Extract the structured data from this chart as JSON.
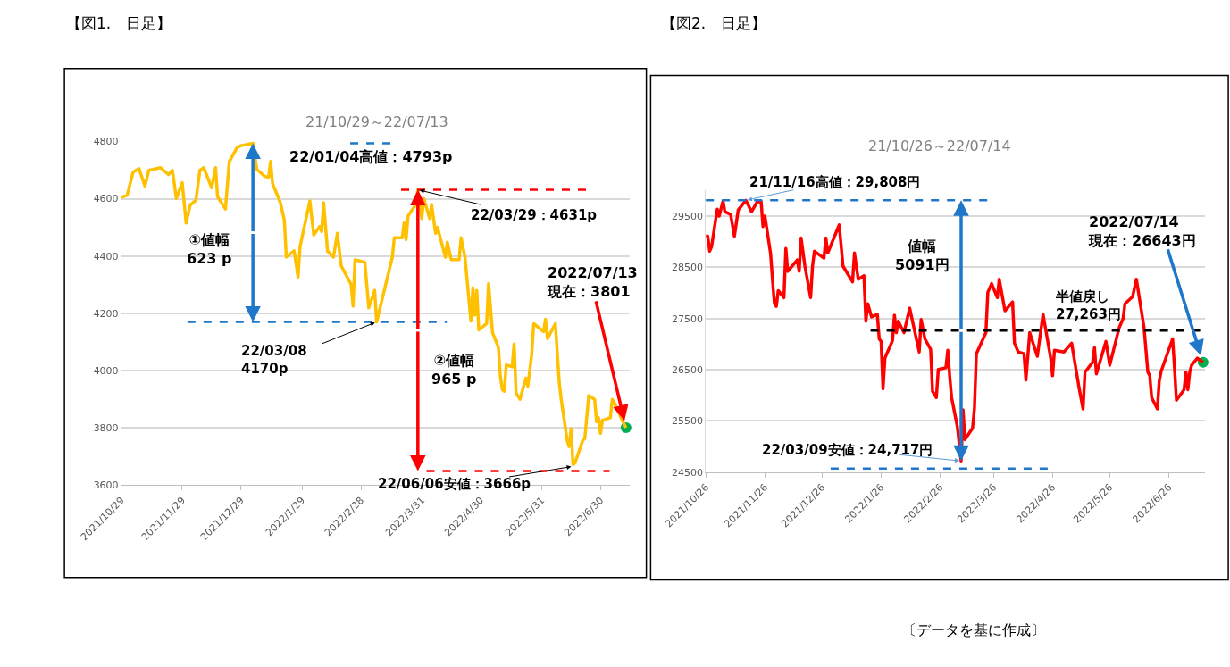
{
  "chart_data": [
    {
      "type": "line",
      "title": "【図1.　日足】",
      "subtitle": "21/10/29～22/07/13",
      "xlim": [
        "2021-10-29",
        "2022-07-15"
      ],
      "xticks": [
        {
          "value": "2021-10-29",
          "label": "2021/10/29"
        },
        {
          "value": "2021-11-29",
          "label": "2021/11/29"
        },
        {
          "value": "2021-12-29",
          "label": "2021/12/29"
        },
        {
          "value": "2022-01-29",
          "label": "2022/1/29"
        },
        {
          "value": "2022-02-28",
          "label": "2022/2/28"
        },
        {
          "value": "2022-03-31",
          "label": "2022/3/31"
        },
        {
          "value": "2022-04-30",
          "label": "2022/4/30"
        },
        {
          "value": "2022-05-31",
          "label": "2022/5/31"
        },
        {
          "value": "2022-06-30",
          "label": "2022/6/30"
        }
      ],
      "ylim": [
        3600,
        4800
      ],
      "yticks": [
        3600,
        3800,
        4000,
        4200,
        4400,
        4600,
        4800
      ],
      "grid": "y",
      "series": [
        {
          "type": "line",
          "color": "#ffc000",
          "x": [
            "2021-10-29",
            "2021-11-01",
            "2021-11-04",
            "2021-11-07",
            "2021-11-10",
            "2021-11-12",
            "2021-11-16",
            "2021-11-18",
            "2021-11-22",
            "2021-11-24",
            "2021-11-26",
            "2021-11-29",
            "2021-12-01",
            "2021-12-03",
            "2021-12-06",
            "2021-12-08",
            "2021-12-10",
            "2021-12-14",
            "2021-12-16",
            "2021-12-17",
            "2021-12-21",
            "2021-12-23",
            "2021-12-27",
            "2021-12-29",
            "2022-01-04",
            "2022-01-06",
            "2022-01-10",
            "2022-01-12",
            "2022-01-13",
            "2022-01-14",
            "2022-01-18",
            "2022-01-20",
            "2022-01-21",
            "2022-01-25",
            "2022-01-27",
            "2022-01-28",
            "2022-02-02",
            "2022-02-04",
            "2022-02-07",
            "2022-02-08",
            "2022-02-09",
            "2022-02-11",
            "2022-02-14",
            "2022-02-16",
            "2022-02-18",
            "2022-02-23",
            "2022-02-24",
            "2022-02-25",
            "2022-03-02",
            "2022-03-04",
            "2022-03-07",
            "2022-03-08",
            "2022-03-16",
            "2022-03-17",
            "2022-03-21",
            "2022-03-22",
            "2022-03-23",
            "2022-03-24",
            "2022-03-28",
            "2022-03-29",
            "2022-03-31",
            "2022-04-01",
            "2022-04-04",
            "2022-04-05",
            "2022-04-07",
            "2022-04-08",
            "2022-04-12",
            "2022-04-13",
            "2022-04-15",
            "2022-04-19",
            "2022-04-20",
            "2022-04-22",
            "2022-04-25",
            "2022-04-26",
            "2022-04-27",
            "2022-04-28",
            "2022-04-29",
            "2022-05-03",
            "2022-05-04",
            "2022-05-06",
            "2022-05-09",
            "2022-05-10",
            "2022-05-11",
            "2022-05-12",
            "2022-05-13",
            "2022-05-16",
            "2022-05-17",
            "2022-05-18",
            "2022-05-20",
            "2022-05-23",
            "2022-05-24",
            "2022-05-26",
            "2022-05-27",
            "2022-06-01",
            "2022-06-02",
            "2022-06-03",
            "2022-06-07",
            "2022-06-09",
            "2022-06-10",
            "2022-06-13",
            "2022-06-14",
            "2022-06-15",
            "2022-06-16",
            "2022-06-17",
            "2022-06-21",
            "2022-06-22",
            "2022-06-24",
            "2022-06-27",
            "2022-06-28",
            "2022-06-29",
            "2022-06-30",
            "2022-07-01",
            "2022-07-05",
            "2022-07-06",
            "2022-07-07",
            "2022-07-11",
            "2022-07-13"
          ],
          "values": [
            4604,
            4613,
            4693,
            4705,
            4644,
            4699,
            4705,
            4708,
            4684,
            4699,
            4601,
            4656,
            4515,
            4577,
            4595,
            4699,
            4708,
            4638,
            4708,
            4607,
            4564,
            4730,
            4779,
            4785,
            4793,
            4702,
            4678,
            4675,
            4730,
            4653,
            4586,
            4525,
            4396,
            4418,
            4326,
            4433,
            4592,
            4473,
            4503,
            4485,
            4586,
            4417,
            4396,
            4479,
            4365,
            4301,
            4225,
            4387,
            4378,
            4219,
            4280,
            4170,
            4396,
            4464,
            4464,
            4516,
            4457,
            4540,
            4580,
            4631,
            4531,
            4601,
            4531,
            4580,
            4479,
            4500,
            4396,
            4448,
            4387,
            4387,
            4464,
            4396,
            4173,
            4289,
            4194,
            4280,
            4142,
            4164,
            4304,
            4133,
            4081,
            3980,
            3934,
            3928,
            4020,
            4013,
            4093,
            3922,
            3900,
            3974,
            3946,
            4059,
            4164,
            4136,
            4179,
            4112,
            4164,
            3959,
            3900,
            3757,
            3735,
            3797,
            3672,
            3678,
            3757,
            3763,
            3913,
            3900,
            3821,
            3836,
            3781,
            3827,
            3836,
            3900,
            3888,
            3827,
            3801
          ]
        },
        {
          "type": "scatter",
          "color": "#00b050",
          "marker": "circle",
          "x": [
            "2022-07-13"
          ],
          "values": [
            3801
          ]
        }
      ],
      "ref_lines": [
        {
          "axis": "y",
          "value": 4793,
          "color": "#1f77c9",
          "line_style": "dashed"
        },
        {
          "axis": "y",
          "value": 4170,
          "color": "#1f77c9",
          "line_style": "dashed"
        },
        {
          "axis": "y",
          "value": 4631,
          "color": "#ff0000",
          "line_style": "dashed"
        },
        {
          "axis": "y",
          "value": 3650,
          "color": "#ff0000",
          "line_style": "dashed"
        }
      ],
      "annotations": [
        "22/01/04高値：4793p",
        "①値幅\n623 p",
        {
          "text": "22/03/29：4631p",
          "x": "2022-03-29",
          "y": 4631
        },
        {
          "text": "22/03/08\n4170p",
          "x": "2022-03-08",
          "y": 4170
        },
        "②値幅\n965 p",
        {
          "text": "2022/07/13\n現在：3801",
          "x": "2022-07-13",
          "y": 3801
        },
        {
          "text": "22/06/06安値：3666p",
          "x": "2022-06-16",
          "y": 3666
        }
      ]
    },
    {
      "type": "line",
      "title": "【図2.　日足】",
      "subtitle": "21/10/26～22/07/14",
      "xlim": [
        "2021-10-26",
        "2022-07-15"
      ],
      "xticks": [
        {
          "value": "2021-10-26",
          "label": "2021/10/26"
        },
        {
          "value": "2021-11-26",
          "label": "2021/11/26"
        },
        {
          "value": "2021-12-26",
          "label": "2021/12/26"
        },
        {
          "value": "2022-01-26",
          "label": "2022/1/26"
        },
        {
          "value": "2022-02-26",
          "label": "2022/2/26"
        },
        {
          "value": "2022-03-26",
          "label": "2022/3/26"
        },
        {
          "value": "2022-04-26",
          "label": "2022/4/26"
        },
        {
          "value": "2022-05-26",
          "label": "2022/5/26"
        },
        {
          "value": "2022-06-26",
          "label": "2022/6/26"
        }
      ],
      "ylim": [
        24500,
        30000
      ],
      "yticks": [
        24500,
        25500,
        26500,
        27500,
        28500,
        29500
      ],
      "grid": "y",
      "series": [
        {
          "type": "line",
          "color": "#ff0000",
          "x": [
            "2021-10-26",
            "2021-10-27",
            "2021-10-28",
            "2021-10-29",
            "2021-11-01",
            "2021-11-02",
            "2021-11-04",
            "2021-11-05",
            "2021-11-08",
            "2021-11-10",
            "2021-11-12",
            "2021-11-16",
            "2021-11-19",
            "2021-11-22",
            "2021-11-24",
            "2021-11-25",
            "2021-11-26",
            "2021-11-29",
            "2021-11-30",
            "2021-12-01",
            "2021-12-02",
            "2021-12-03",
            "2021-12-06",
            "2021-12-07",
            "2021-12-08",
            "2021-12-13",
            "2021-12-14",
            "2021-12-15",
            "2021-12-17",
            "2021-12-20",
            "2021-12-21",
            "2021-12-22",
            "2021-12-27",
            "2021-12-28",
            "2021-12-29",
            "2022-01-04",
            "2022-01-06",
            "2022-01-11",
            "2022-01-12",
            "2022-01-14",
            "2022-01-17",
            "2022-01-18",
            "2022-01-19",
            "2022-01-21",
            "2022-01-24",
            "2022-01-25",
            "2022-01-26",
            "2022-01-27",
            "2022-01-28",
            "2022-02-01",
            "2022-02-02",
            "2022-02-03",
            "2022-02-04",
            "2022-02-07",
            "2022-02-10",
            "2022-02-15",
            "2022-02-16",
            "2022-02-18",
            "2022-02-21",
            "2022-02-22",
            "2022-02-24",
            "2022-02-25",
            "2022-03-01",
            "2022-03-02",
            "2022-03-03",
            "2022-03-04",
            "2022-03-07",
            "2022-03-09",
            "2022-03-10",
            "2022-03-11",
            "2022-03-15",
            "2022-03-16",
            "2022-03-17",
            "2022-03-22",
            "2022-03-23",
            "2022-03-25",
            "2022-03-28",
            "2022-03-29",
            "2022-04-01",
            "2022-04-05",
            "2022-04-06",
            "2022-04-08",
            "2022-04-11",
            "2022-04-12",
            "2022-04-14",
            "2022-04-18",
            "2022-04-21",
            "2022-04-25",
            "2022-04-26",
            "2022-04-27",
            "2022-05-02",
            "2022-05-06",
            "2022-05-10",
            "2022-05-12",
            "2022-05-13",
            "2022-05-17",
            "2022-05-18",
            "2022-05-19",
            "2022-05-24",
            "2022-05-26",
            "2022-05-31",
            "2022-06-02",
            "2022-06-03",
            "2022-06-07",
            "2022-06-09",
            "2022-06-13",
            "2022-06-15",
            "2022-06-16",
            "2022-06-17",
            "2022-06-20",
            "2022-06-21",
            "2022-06-22",
            "2022-06-28",
            "2022-06-29",
            "2022-06-30",
            "2022-07-04",
            "2022-07-05",
            "2022-07-06",
            "2022-07-07",
            "2022-07-08",
            "2022-07-11",
            "2022-07-14"
          ],
          "values": [
            29123,
            29106,
            28815,
            28900,
            29637,
            29500,
            29791,
            29585,
            29534,
            29106,
            29620,
            29808,
            29585,
            29780,
            29790,
            29295,
            29500,
            28764,
            28250,
            27788,
            27737,
            28045,
            27908,
            28867,
            28421,
            28644,
            28421,
            29072,
            28524,
            27908,
            28524,
            28815,
            28678,
            29072,
            28781,
            29329,
            28524,
            28216,
            28781,
            28267,
            28336,
            27446,
            27788,
            27531,
            27582,
            27103,
            27052,
            26127,
            26727,
            27069,
            27565,
            27223,
            27446,
            27223,
            27702,
            26846,
            27480,
            27103,
            26898,
            26076,
            25956,
            26504,
            26538,
            26881,
            26367,
            25956,
            25391,
            24717,
            25717,
            25135,
            25357,
            25750,
            26812,
            27223,
            28011,
            28182,
            27908,
            28267,
            27651,
            27822,
            27018,
            26846,
            26812,
            26298,
            27223,
            26761,
            27582,
            26727,
            26384,
            26881,
            26846,
            27018,
            26127,
            25734,
            26453,
            26641,
            26932,
            26418,
            27052,
            26589,
            27326,
            27497,
            27788,
            27925,
            28267,
            27326,
            26453,
            26384,
            25956,
            25734,
            26281,
            26470,
            27103,
            26538,
            25905,
            26110,
            26453,
            26110,
            26453,
            26589,
            26727,
            26643
          ]
        },
        {
          "type": "scatter",
          "color": "#00b050",
          "marker": "circle",
          "x": [
            "2022-07-14"
          ],
          "values": [
            26643
          ]
        }
      ],
      "ref_lines": [
        {
          "axis": "y",
          "value": 29808,
          "color": "#1f77c9",
          "line_style": "dashed"
        },
        {
          "axis": "y",
          "value": 24570,
          "color": "#1f77c9",
          "line_style": "dashed"
        },
        {
          "axis": "y",
          "value": 27263,
          "color": "#000000",
          "line_style": "dashed",
          "label": "半値戻し\n27,263円"
        }
      ],
      "annotations": [
        {
          "text": "21/11/16高値：29,808円",
          "x": "2021-11-16",
          "y": 29808
        },
        "値幅\n5091円",
        {
          "text": "2022/07/14\n現在：26643円",
          "x": "2022-07-14",
          "y": 26643
        },
        {
          "text": "22/03/09安値：24,717円",
          "x": "2022-03-09",
          "y": 24717
        },
        "〔データを基に作成〕"
      ]
    }
  ]
}
